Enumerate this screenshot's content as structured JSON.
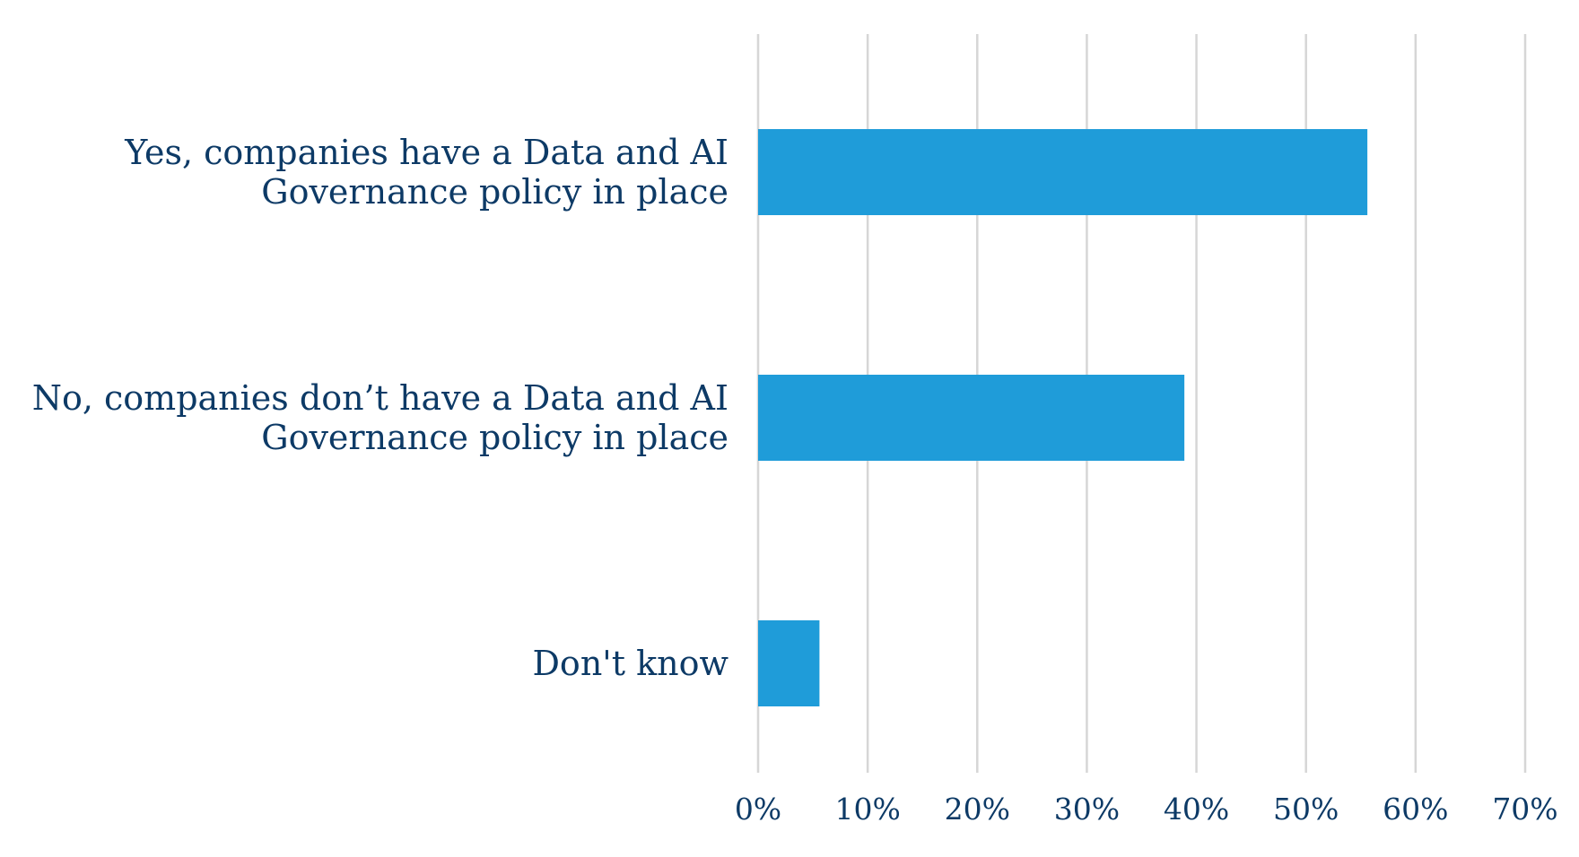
{
  "chart_data": {
    "type": "bar",
    "orientation": "horizontal",
    "categories": [
      [
        "Yes, companies have a Data and AI",
        "Governance policy in place"
      ],
      [
        "No, companies don’t have a Data and AI",
        "Governance policy in place"
      ],
      [
        "Don't know"
      ]
    ],
    "values": [
      0.556,
      0.389,
      0.056
    ],
    "xlim": [
      0,
      0.7
    ],
    "ticks": [
      0,
      0.1,
      0.2,
      0.3,
      0.4,
      0.5,
      0.6,
      0.7
    ],
    "tick_labels": [
      "0%",
      "10%",
      "20%",
      "30%",
      "40%",
      "50%",
      "60%",
      "70%"
    ],
    "grid": true,
    "title": "",
    "xlabel": "",
    "ylabel": ""
  },
  "colors": {
    "bar": "#1f9cd9",
    "text": "#0d3a66",
    "grid": "#d6d6d6"
  }
}
